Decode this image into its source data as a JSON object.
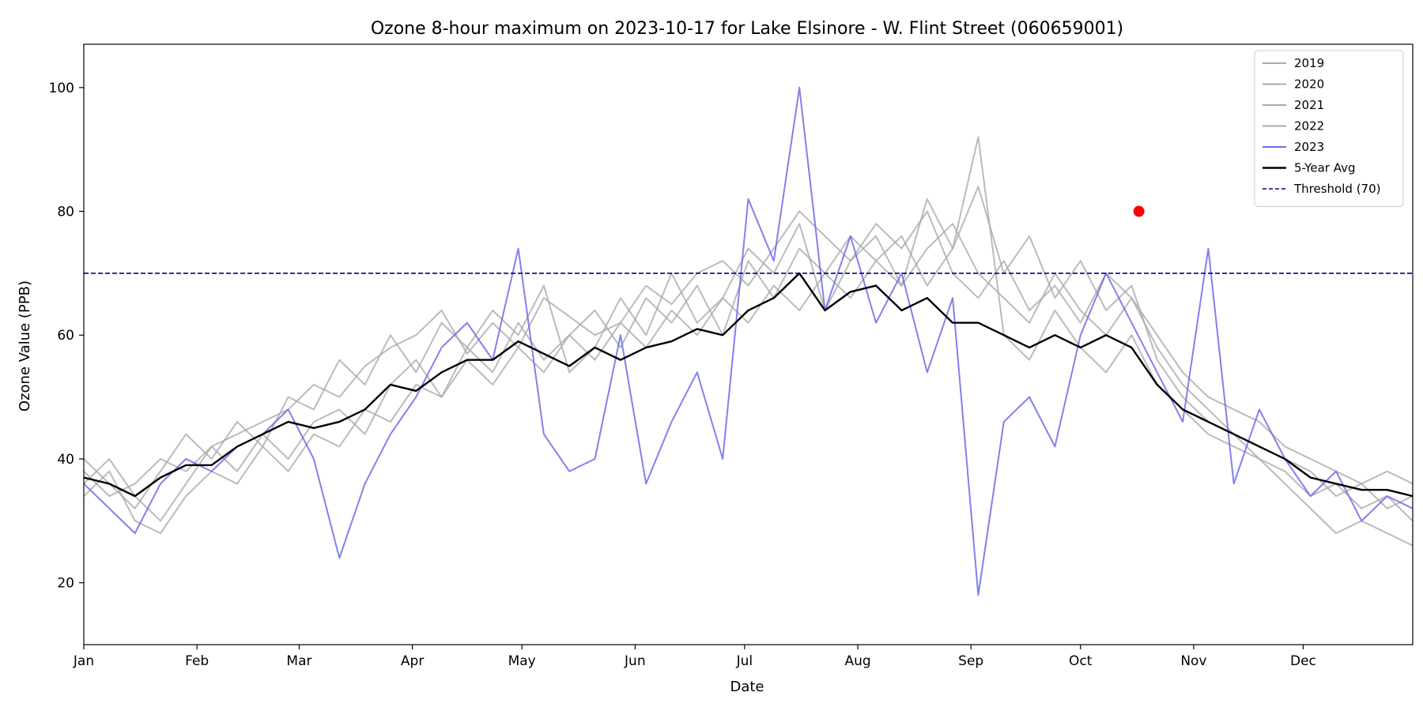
{
  "chart_data": {
    "type": "line",
    "title": "Ozone 8-hour maximum on 2023-10-17 for Lake Elsinore - W. Flint Street (060659001)",
    "xlabel": "Date",
    "ylabel": "Ozone Value (PPB)",
    "x_unit": "day of year",
    "xlim": [
      1,
      365
    ],
    "ylim": [
      10,
      107
    ],
    "x_ticks": [
      {
        "label": "Jan",
        "day": 1
      },
      {
        "label": "Feb",
        "day": 32
      },
      {
        "label": "Mar",
        "day": 60
      },
      {
        "label": "Apr",
        "day": 91
      },
      {
        "label": "May",
        "day": 121
      },
      {
        "label": "Jun",
        "day": 152
      },
      {
        "label": "Jul",
        "day": 182
      },
      {
        "label": "Aug",
        "day": 213
      },
      {
        "label": "Sep",
        "day": 244
      },
      {
        "label": "Oct",
        "day": 274
      },
      {
        "label": "Nov",
        "day": 305
      },
      {
        "label": "Dec",
        "day": 335
      }
    ],
    "y_ticks": [
      20,
      40,
      60,
      80,
      100
    ],
    "grid": false,
    "legend_position": "top-right",
    "series": [
      {
        "name": "2019",
        "color": "#aaaaaa",
        "x": [
          1,
          8,
          15,
          22,
          29,
          36,
          43,
          50,
          57,
          64,
          71,
          78,
          85,
          92,
          99,
          106,
          113,
          120,
          127,
          134,
          141,
          148,
          155,
          162,
          169,
          176,
          183,
          190,
          197,
          204,
          211,
          218,
          225,
          232,
          239,
          246,
          253,
          260,
          267,
          274,
          281,
          288,
          295,
          302,
          309,
          316,
          323,
          330,
          337,
          344,
          351,
          358,
          365
        ],
        "y": [
          38,
          34,
          36,
          40,
          38,
          42,
          44,
          46,
          48,
          52,
          50,
          55,
          58,
          60,
          64,
          57,
          62,
          58,
          66,
          63,
          60,
          62,
          68,
          65,
          70,
          72,
          68,
          74,
          80,
          76,
          72,
          78,
          74,
          80,
          70,
          66,
          72,
          64,
          68,
          62,
          70,
          66,
          60,
          54,
          50,
          48,
          46,
          42,
          40,
          38,
          36,
          38,
          36
        ]
      },
      {
        "name": "2020",
        "color": "#aaaaaa",
        "x": [
          1,
          8,
          15,
          22,
          29,
          36,
          43,
          50,
          57,
          64,
          71,
          78,
          85,
          92,
          99,
          106,
          113,
          120,
          127,
          134,
          141,
          148,
          155,
          162,
          169,
          176,
          183,
          190,
          197,
          204,
          211,
          218,
          225,
          232,
          239,
          246,
          253,
          260,
          267,
          274,
          281,
          288,
          295,
          302,
          309,
          316,
          323,
          330,
          337,
          344,
          351,
          358,
          365
        ],
        "y": [
          40,
          36,
          32,
          38,
          44,
          40,
          46,
          42,
          50,
          48,
          56,
          52,
          60,
          54,
          62,
          58,
          64,
          60,
          68,
          54,
          58,
          66,
          60,
          70,
          62,
          66,
          74,
          70,
          78,
          64,
          72,
          76,
          68,
          82,
          74,
          84,
          70,
          76,
          66,
          72,
          64,
          68,
          56,
          50,
          46,
          44,
          40,
          38,
          34,
          36,
          32,
          34,
          30
        ]
      },
      {
        "name": "2021",
        "color": "#aaaaaa",
        "x": [
          1,
          8,
          15,
          22,
          29,
          36,
          43,
          50,
          57,
          64,
          71,
          78,
          85,
          92,
          99,
          106,
          113,
          120,
          127,
          134,
          141,
          148,
          155,
          162,
          169,
          176,
          183,
          190,
          197,
          204,
          211,
          218,
          225,
          232,
          239,
          246,
          253,
          260,
          267,
          274,
          281,
          288,
          295,
          302,
          309,
          316,
          323,
          330,
          337,
          344,
          351,
          358,
          365
        ],
        "y": [
          36,
          40,
          34,
          30,
          36,
          42,
          38,
          44,
          40,
          46,
          48,
          44,
          52,
          56,
          50,
          58,
          54,
          62,
          56,
          60,
          64,
          58,
          66,
          62,
          68,
          60,
          72,
          66,
          74,
          70,
          76,
          72,
          68,
          74,
          78,
          70,
          66,
          62,
          70,
          64,
          60,
          66,
          58,
          52,
          48,
          44,
          42,
          40,
          38,
          34,
          36,
          32,
          34
        ]
      },
      {
        "name": "2022",
        "color": "#aaaaaa",
        "x": [
          1,
          8,
          15,
          22,
          29,
          36,
          43,
          50,
          57,
          64,
          71,
          78,
          85,
          92,
          99,
          106,
          113,
          120,
          127,
          134,
          141,
          148,
          155,
          162,
          169,
          176,
          183,
          190,
          197,
          204,
          211,
          218,
          225,
          232,
          239,
          246,
          253,
          260,
          267,
          274,
          281,
          288,
          295,
          302,
          309,
          316,
          323,
          330,
          337,
          344,
          351,
          358,
          365
        ],
        "y": [
          34,
          38,
          30,
          28,
          34,
          38,
          36,
          42,
          38,
          44,
          42,
          48,
          46,
          52,
          50,
          56,
          52,
          58,
          54,
          60,
          56,
          62,
          58,
          64,
          60,
          66,
          62,
          68,
          64,
          70,
          66,
          72,
          76,
          68,
          74,
          92,
          60,
          56,
          64,
          58,
          54,
          60,
          52,
          48,
          44,
          42,
          40,
          36,
          32,
          28,
          30,
          28,
          26
        ]
      },
      {
        "name": "2023",
        "color": "#6b6bea",
        "x": [
          1,
          8,
          15,
          22,
          29,
          36,
          43,
          50,
          57,
          64,
          71,
          78,
          85,
          92,
          99,
          106,
          113,
          120,
          127,
          134,
          141,
          148,
          155,
          162,
          169,
          176,
          183,
          190,
          197,
          204,
          211,
          218,
          225,
          232,
          239,
          246,
          253,
          260,
          267,
          274,
          281,
          288,
          295,
          302,
          309,
          316,
          323,
          330,
          337,
          344,
          351,
          358,
          365
        ],
        "y": [
          36,
          32,
          28,
          36,
          40,
          38,
          42,
          44,
          48,
          40,
          24,
          36,
          44,
          50,
          58,
          62,
          56,
          74,
          44,
          38,
          40,
          60,
          36,
          46,
          54,
          40,
          82,
          72,
          100,
          64,
          76,
          62,
          70,
          54,
          66,
          18,
          46,
          50,
          42,
          60,
          70,
          62,
          54,
          46,
          74,
          36,
          48,
          40,
          34,
          38,
          30,
          34,
          32
        ]
      },
      {
        "name": "5-Year Avg",
        "color": "#000000",
        "x": [
          1,
          8,
          15,
          22,
          29,
          36,
          43,
          50,
          57,
          64,
          71,
          78,
          85,
          92,
          99,
          106,
          113,
          120,
          127,
          134,
          141,
          148,
          155,
          162,
          169,
          176,
          183,
          190,
          197,
          204,
          211,
          218,
          225,
          232,
          239,
          246,
          253,
          260,
          267,
          274,
          281,
          288,
          295,
          302,
          309,
          316,
          323,
          330,
          337,
          344,
          351,
          358,
          365
        ],
        "y": [
          37,
          36,
          34,
          37,
          39,
          39,
          42,
          44,
          46,
          45,
          46,
          48,
          52,
          51,
          54,
          56,
          56,
          59,
          57,
          55,
          58,
          56,
          58,
          59,
          61,
          60,
          64,
          66,
          70,
          64,
          67,
          68,
          64,
          66,
          62,
          62,
          60,
          58,
          60,
          58,
          60,
          58,
          52,
          48,
          46,
          44,
          42,
          40,
          37,
          36,
          35,
          35,
          34
        ]
      }
    ],
    "threshold": {
      "name": "Threshold (70)",
      "value": 70,
      "color": "#000080"
    },
    "highlight_point": {
      "day": 290,
      "value": 80,
      "color": "#ff0000"
    }
  }
}
